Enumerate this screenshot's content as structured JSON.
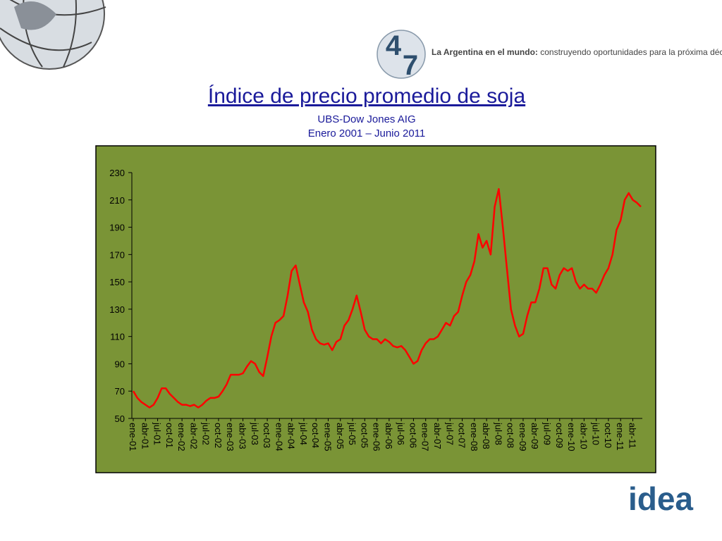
{
  "header": {
    "logo_top": "4",
    "logo_bottom": "7",
    "slogan_bold": "La Argentina en el mundo:",
    "slogan": "construyendo oportunidades para la próxima década"
  },
  "footer": {
    "logo": "idea"
  },
  "chart_data": {
    "type": "line",
    "title": "Índice de precio promedio de soja",
    "subtitle": [
      "UBS-Dow Jones AIG",
      "Enero 2001 – Junio 2011"
    ],
    "color": "#ff0000",
    "background": "#7a9436",
    "ylim": [
      50,
      230
    ],
    "yticks": [
      50,
      70,
      90,
      110,
      130,
      150,
      170,
      190,
      210,
      230
    ],
    "categories": [
      "ene-01",
      null,
      null,
      "abr-01",
      null,
      null,
      "jul-01",
      null,
      null,
      "oct-01",
      null,
      null,
      "ene-02",
      null,
      null,
      "abr-02",
      null,
      null,
      "jul-02",
      null,
      null,
      "oct-02",
      null,
      null,
      "ene-03",
      null,
      null,
      "abr-03",
      null,
      null,
      "jul-03",
      null,
      null,
      "oct-03",
      null,
      null,
      "ene-04",
      null,
      null,
      "abr-04",
      null,
      null,
      "jul-04",
      null,
      null,
      "oct-04",
      null,
      null,
      "ene-05",
      null,
      null,
      "abr-05",
      null,
      null,
      "jul-05",
      null,
      null,
      "oct-05",
      null,
      null,
      "ene-06",
      null,
      null,
      "abr-06",
      null,
      null,
      "jul-06",
      null,
      null,
      "oct-06",
      null,
      null,
      "ene-07",
      null,
      null,
      "abr-07",
      null,
      null,
      "jul-07",
      null,
      null,
      "oct-07",
      null,
      null,
      "ene-08",
      null,
      null,
      "abr-08",
      null,
      null,
      "jul-08",
      null,
      null,
      "oct-08",
      null,
      null,
      "ene-09",
      null,
      null,
      "abr-09",
      null,
      null,
      "jul-09",
      null,
      null,
      "oct-09",
      null,
      null,
      "ene-10",
      null,
      null,
      "abr-10",
      null,
      null,
      "jul-10",
      null,
      null,
      "oct-10",
      null,
      null,
      "ene-11",
      null,
      null,
      "abr-11",
      null,
      null
    ],
    "values": [
      70,
      65,
      62,
      60,
      58,
      60,
      65,
      72,
      72,
      68,
      65,
      62,
      60,
      60,
      59,
      60,
      58,
      60,
      63,
      65,
      65,
      66,
      70,
      75,
      82,
      82,
      82,
      83,
      88,
      92,
      90,
      84,
      81,
      95,
      110,
      120,
      122,
      125,
      140,
      158,
      162,
      148,
      135,
      128,
      115,
      108,
      105,
      104,
      105,
      100,
      106,
      108,
      118,
      122,
      130,
      140,
      128,
      115,
      110,
      108,
      108,
      105,
      108,
      106,
      103,
      102,
      103,
      100,
      95,
      90,
      92,
      100,
      105,
      108,
      108,
      110,
      115,
      120,
      118,
      125,
      128,
      140,
      150,
      155,
      165,
      185,
      175,
      180,
      170,
      205,
      218,
      190,
      160,
      130,
      118,
      110,
      112,
      125,
      135,
      135,
      145,
      160,
      160,
      148,
      145,
      155,
      160,
      158,
      160,
      150,
      145,
      148,
      145,
      145,
      142,
      148,
      155,
      160,
      170,
      188,
      195,
      210,
      215,
      210,
      208,
      205
    ]
  }
}
